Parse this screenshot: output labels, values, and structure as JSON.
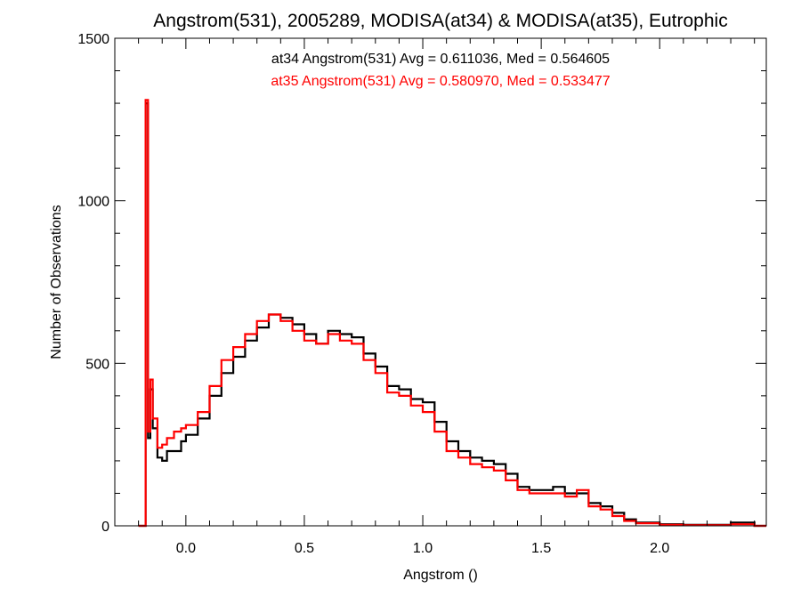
{
  "chart_data": {
    "type": "line",
    "title": "Angstrom(531), 2005289, MODISA(at34) & MODISA(at35), Eutrophic",
    "xlabel": "Angstrom ()",
    "ylabel": "Number of Observations",
    "xlim": [
      -0.3,
      2.45
    ],
    "ylim": [
      0,
      1500
    ],
    "x_ticks": [
      0.0,
      0.5,
      1.0,
      1.5,
      2.0
    ],
    "x_tick_labels": [
      "0.0",
      "0.5",
      "1.0",
      "1.5",
      "2.0"
    ],
    "y_ticks": [
      0,
      500,
      1000,
      1500
    ],
    "y_tick_labels": [
      "0",
      "500",
      "1000",
      "1500"
    ],
    "annotations": [
      "at34 Angstrom(531) Avg = 0.611036, Med = 0.564605",
      "at35 Angstrom(531) Avg = 0.580970, Med = 0.533477"
    ],
    "colors": {
      "at34": "#000000",
      "at35": "#ff0000"
    },
    "grid": false,
    "series": [
      {
        "color": "#000000",
        "x": [
          -0.2,
          -0.18,
          -0.17,
          -0.16,
          -0.15,
          -0.14,
          -0.12,
          -0.1,
          -0.08,
          -0.05,
          -0.02,
          0.0,
          0.05,
          0.1,
          0.15,
          0.2,
          0.25,
          0.3,
          0.35,
          0.4,
          0.45,
          0.5,
          0.55,
          0.6,
          0.65,
          0.7,
          0.75,
          0.8,
          0.85,
          0.9,
          0.95,
          1.0,
          1.05,
          1.1,
          1.15,
          1.2,
          1.25,
          1.3,
          1.35,
          1.4,
          1.45,
          1.5,
          1.55,
          1.6,
          1.65,
          1.7,
          1.75,
          1.8,
          1.85,
          1.9,
          2.0,
          2.1,
          2.2,
          2.3,
          2.4
        ],
        "y": [
          0,
          0,
          1300,
          270,
          420,
          300,
          210,
          200,
          230,
          230,
          260,
          280,
          330,
          400,
          470,
          520,
          570,
          610,
          650,
          640,
          620,
          590,
          560,
          600,
          590,
          580,
          530,
          490,
          430,
          420,
          390,
          380,
          320,
          260,
          230,
          210,
          200,
          190,
          160,
          120,
          110,
          110,
          120,
          100,
          100,
          70,
          60,
          40,
          20,
          10,
          5,
          3,
          3,
          10,
          0
        ]
      },
      {
        "color": "#ff0000",
        "x": [
          -0.2,
          -0.18,
          -0.17,
          -0.16,
          -0.15,
          -0.14,
          -0.12,
          -0.1,
          -0.08,
          -0.05,
          -0.02,
          0.0,
          0.05,
          0.1,
          0.15,
          0.2,
          0.25,
          0.3,
          0.35,
          0.4,
          0.45,
          0.5,
          0.55,
          0.6,
          0.65,
          0.7,
          0.75,
          0.8,
          0.85,
          0.9,
          0.95,
          1.0,
          1.05,
          1.1,
          1.15,
          1.2,
          1.25,
          1.3,
          1.35,
          1.4,
          1.45,
          1.5,
          1.55,
          1.6,
          1.65,
          1.7,
          1.75,
          1.8,
          1.85,
          1.9,
          2.0,
          2.1,
          2.2,
          2.3,
          2.4
        ],
        "y": [
          0,
          0,
          1310,
          290,
          450,
          330,
          240,
          250,
          270,
          290,
          300,
          310,
          350,
          430,
          510,
          550,
          590,
          630,
          650,
          630,
          600,
          570,
          560,
          590,
          570,
          560,
          510,
          470,
          410,
          400,
          370,
          350,
          290,
          230,
          210,
          190,
          180,
          170,
          140,
          110,
          100,
          100,
          100,
          90,
          110,
          60,
          50,
          30,
          15,
          8,
          3,
          2,
          2,
          5,
          0
        ]
      }
    ]
  }
}
